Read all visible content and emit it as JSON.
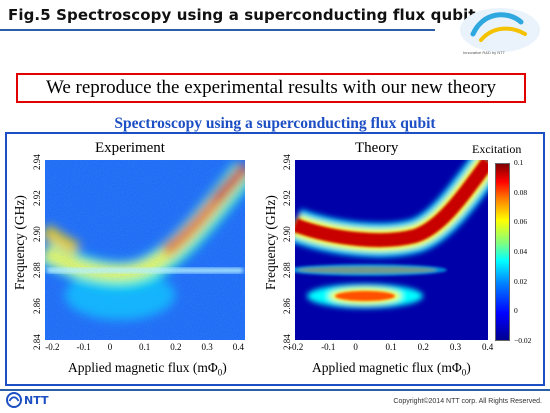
{
  "header": {
    "title": "Fig.5 Spectroscopy using a superconducting flux qubit",
    "logo_text": "Innovative R&D by NTT"
  },
  "callout": {
    "text": "We reproduce the experimental results with our new theory"
  },
  "figure": {
    "subtitle": "Spectroscopy using a superconducting flux qubit",
    "left": {
      "title": "Experiment"
    },
    "right": {
      "title": "Theory"
    },
    "colorbar_label": "Excitation",
    "colorbar_ticks": [
      "0.1",
      "0.08",
      "0.06",
      "0.04",
      "0.02",
      "0",
      "−0.02"
    ]
  },
  "chart_data": [
    {
      "type": "heatmap",
      "title": "Experiment",
      "xlabel": "Applied magnetic flux (mΦ0)",
      "ylabel": "Frequency (GHz)",
      "xlim": [
        -0.22,
        0.42
      ],
      "ylim": [
        2.84,
        2.94
      ],
      "xticks": [
        "-0.2",
        "-0.1",
        "0",
        "0.1",
        "0.2",
        "0.3",
        "0.4"
      ],
      "yticks": [
        "2.84",
        "2.86",
        "2.88",
        "2.90",
        "2.92",
        "2.94"
      ],
      "features": [
        {
          "name": "upper branch",
          "x": [
            -0.2,
            -0.1,
            0.0,
            0.1,
            0.2,
            0.3,
            0.4
          ],
          "y": [
            2.902,
            2.889,
            2.885,
            2.89,
            2.904,
            2.922,
            2.94
          ]
        },
        {
          "name": "narrow line",
          "y": 2.879
        },
        {
          "name": "lower feature",
          "center_x": 0.0,
          "center_y": 2.865
        }
      ]
    },
    {
      "type": "heatmap",
      "title": "Theory",
      "xlabel": "Applied magnetic flux (mΦ0)",
      "ylabel": "Frequency (GHz)",
      "xlim": [
        -0.2,
        0.4
      ],
      "ylim": [
        2.84,
        2.94
      ],
      "xticks": [
        "-0.2",
        "-0.1",
        "0",
        "0.1",
        "0.2",
        "0.3",
        "0.4"
      ],
      "yticks": [
        "2.84",
        "2.86",
        "2.88",
        "2.90",
        "2.92",
        "2.94"
      ],
      "colorbar": {
        "label": "Excitation",
        "range": [
          -0.02,
          0.1
        ]
      },
      "features": [
        {
          "name": "upper branch",
          "x": [
            -0.2,
            -0.1,
            0.0,
            0.1,
            0.2,
            0.3,
            0.4
          ],
          "y": [
            2.902,
            2.896,
            2.895,
            2.897,
            2.905,
            2.922,
            2.94
          ]
        },
        {
          "name": "narrow line",
          "y": 2.878
        },
        {
          "name": "lower feature",
          "center_x": 0.0,
          "center_y": 2.862
        }
      ]
    }
  ],
  "footer": {
    "company": "NTT",
    "copyright": "Copyright©2014 NTT corp. All Rights Reserved."
  }
}
